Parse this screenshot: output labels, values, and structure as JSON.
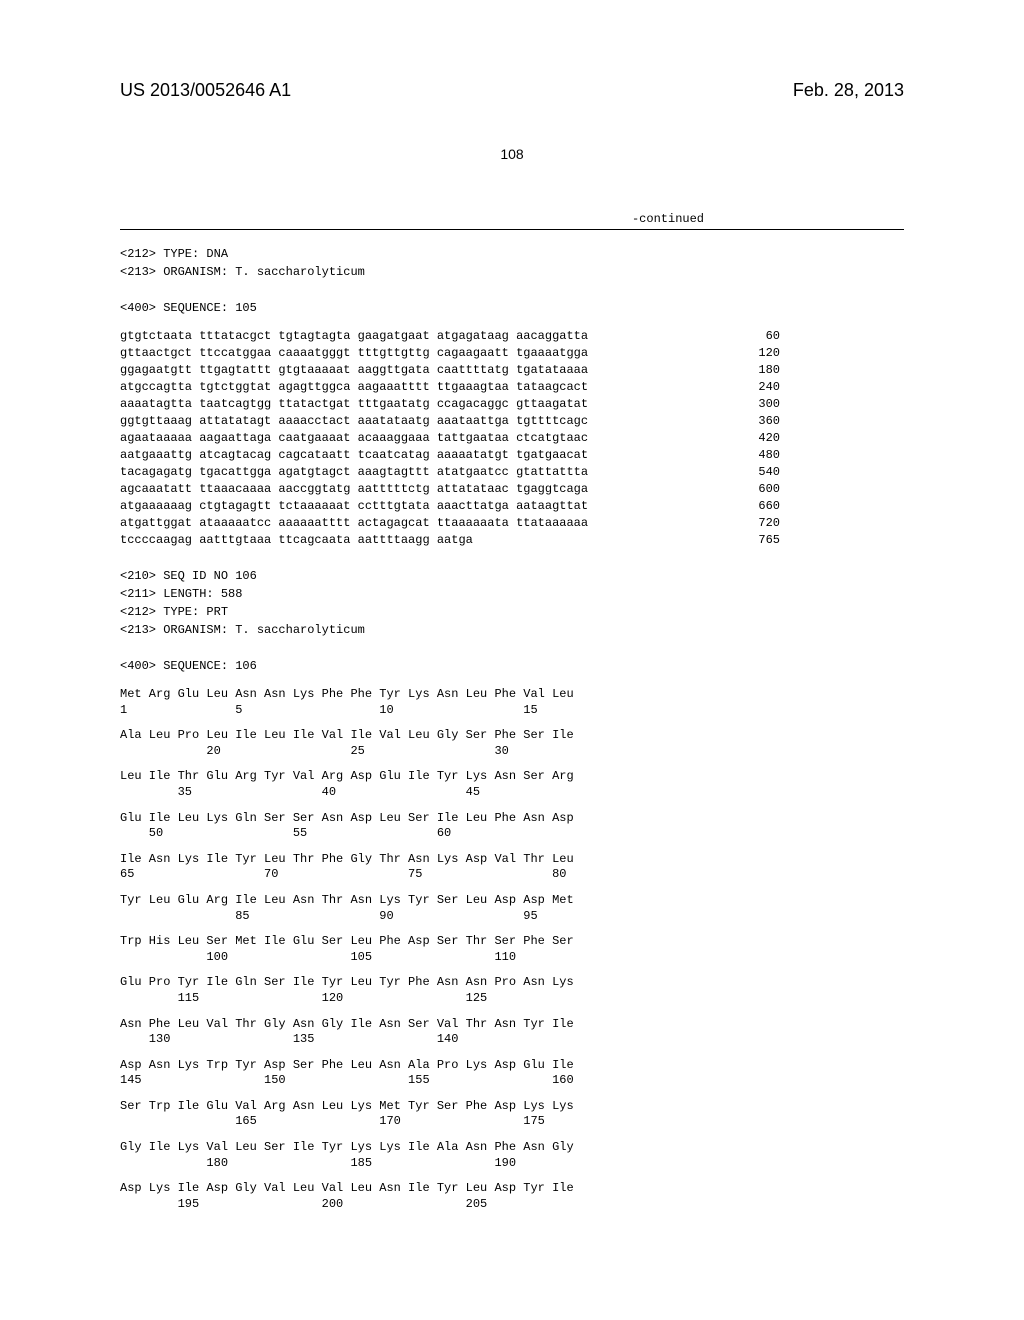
{
  "header": {
    "doc_number": "US 2013/0052646 A1",
    "doc_date": "Feb. 28, 2013"
  },
  "page_number": "108",
  "continued_label": "-continued",
  "seq105": {
    "header_lines": [
      "<212> TYPE: DNA",
      "<213> ORGANISM: T. saccharolyticum",
      "",
      "<400> SEQUENCE: 105"
    ],
    "lines": [
      {
        "text": "gtgtctaata tttatacgct tgtagtagta gaagatgaat atgagataag aacaggatta",
        "pos": "60"
      },
      {
        "text": "gttaactgct ttccatggaa caaaatgggt tttgttgttg cagaagaatt tgaaaatgga",
        "pos": "120"
      },
      {
        "text": "ggagaatgtt ttgagtattt gtgtaaaaat aaggttgata caattttatg tgatataaaa",
        "pos": "180"
      },
      {
        "text": "atgccagtta tgtctggtat agagttggca aagaaatttt ttgaaagtaa tataagcact",
        "pos": "240"
      },
      {
        "text": "aaaatagtta taatcagtgg ttatactgat tttgaatatg ccagacaggc gttaagatat",
        "pos": "300"
      },
      {
        "text": "ggtgttaaag attatatagt aaaacctact aaatataatg aaataattga tgttttcagc",
        "pos": "360"
      },
      {
        "text": "agaataaaaa aagaattaga caatgaaaat acaaaggaaa tattgaataa ctcatgtaac",
        "pos": "420"
      },
      {
        "text": "aatgaaattg atcagtacag cagcataatt tcaatcatag aaaaatatgt tgatgaacat",
        "pos": "480"
      },
      {
        "text": "tacagagatg tgacattgga agatgtagct aaagtagttt atatgaatcc gtattattta",
        "pos": "540"
      },
      {
        "text": "agcaaatatt ttaaacaaaa aaccggtatg aatttttctg attatataac tgaggtcaga",
        "pos": "600"
      },
      {
        "text": "atgaaaaaag ctgtagagtt tctaaaaaat cctttgtata aaacttatga aataagttat",
        "pos": "660"
      },
      {
        "text": "atgattggat ataaaaatcc aaaaaatttt actagagcat ttaaaaaata ttataaaaaa",
        "pos": "720"
      },
      {
        "text": "tccccaagag aatttgtaaa ttcagcaata aattttaagg aatga",
        "pos": "765"
      }
    ]
  },
  "seq106": {
    "header_lines": [
      "<210> SEQ ID NO 106",
      "<211> LENGTH: 588",
      "<212> TYPE: PRT",
      "<213> ORGANISM: T. saccharolyticum",
      "",
      "<400> SEQUENCE: 106"
    ],
    "blocks": [
      {
        "aa": "Met Arg Glu Leu Asn Asn Lys Phe Phe Tyr Lys Asn Leu Phe Val Leu",
        "nums": "1               5                   10                  15"
      },
      {
        "aa": "Ala Leu Pro Leu Ile Leu Ile Val Ile Val Leu Gly Ser Phe Ser Ile",
        "nums": "            20                  25                  30"
      },
      {
        "aa": "Leu Ile Thr Glu Arg Tyr Val Arg Asp Glu Ile Tyr Lys Asn Ser Arg",
        "nums": "        35                  40                  45"
      },
      {
        "aa": "Glu Ile Leu Lys Gln Ser Ser Asn Asp Leu Ser Ile Leu Phe Asn Asp",
        "nums": "    50                  55                  60"
      },
      {
        "aa": "Ile Asn Lys Ile Tyr Leu Thr Phe Gly Thr Asn Lys Asp Val Thr Leu",
        "nums": "65                  70                  75                  80"
      },
      {
        "aa": "Tyr Leu Glu Arg Ile Leu Asn Thr Asn Lys Tyr Ser Leu Asp Asp Met",
        "nums": "                85                  90                  95"
      },
      {
        "aa": "Trp His Leu Ser Met Ile Glu Ser Leu Phe Asp Ser Thr Ser Phe Ser",
        "nums": "            100                 105                 110"
      },
      {
        "aa": "Glu Pro Tyr Ile Gln Ser Ile Tyr Leu Tyr Phe Asn Asn Pro Asn Lys",
        "nums": "        115                 120                 125"
      },
      {
        "aa": "Asn Phe Leu Val Thr Gly Asn Gly Ile Asn Ser Val Thr Asn Tyr Ile",
        "nums": "    130                 135                 140"
      },
      {
        "aa": "Asp Asn Lys Trp Tyr Asp Ser Phe Leu Asn Ala Pro Lys Asp Glu Ile",
        "nums": "145                 150                 155                 160"
      },
      {
        "aa": "Ser Trp Ile Glu Val Arg Asn Leu Lys Met Tyr Ser Phe Asp Lys Lys",
        "nums": "                165                 170                 175"
      },
      {
        "aa": "Gly Ile Lys Val Leu Ser Ile Tyr Lys Lys Ile Ala Asn Phe Asn Gly",
        "nums": "            180                 185                 190"
      },
      {
        "aa": "Asp Lys Ile Asp Gly Val Leu Val Leu Asn Ile Tyr Leu Asp Tyr Ile",
        "nums": "        195                 200                 205"
      }
    ]
  }
}
